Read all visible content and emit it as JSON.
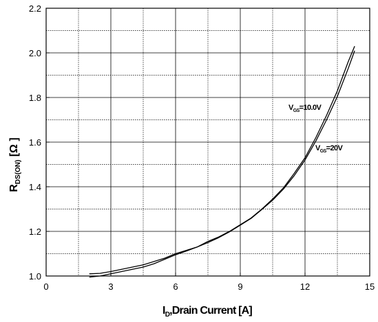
{
  "chart_data": {
    "type": "line",
    "xlim": [
      0,
      15
    ],
    "ylim": [
      1.0,
      2.2
    ],
    "x_ticks": [
      0,
      3,
      6,
      9,
      12,
      15
    ],
    "x_tick_labels": [
      "0",
      "3",
      "6",
      "9",
      "12",
      "15"
    ],
    "y_ticks": [
      1.0,
      1.2,
      1.4,
      1.6,
      1.8,
      2.0,
      2.2
    ],
    "y_tick_labels": [
      "1.0",
      "1.2",
      "1.4",
      "1.6",
      "1.8",
      "2.0",
      "2.2"
    ],
    "x_minor_grid_step": 1.5,
    "y_minor_grid_step": 0.1,
    "grid": true,
    "xlabel": {
      "main": "I",
      "sub": "D",
      "rest": ",Drain Current [A]"
    },
    "ylabel": {
      "main": "R",
      "sub": "DS(ON)",
      "rest": " [Ω ]"
    },
    "series": [
      {
        "label_main": "V",
        "label_sub": "GS",
        "label_rest": "=10.0V",
        "color": "#000000",
        "x": [
          2.0,
          2.5,
          3.0,
          3.5,
          4.0,
          4.5,
          5.0,
          5.5,
          6.0,
          6.5,
          7.0,
          7.5,
          8.0,
          8.5,
          9.0,
          9.5,
          10.0,
          10.5,
          11.0,
          11.5,
          12.0,
          12.5,
          13.0,
          13.5,
          14.0,
          14.3
        ],
        "y": [
          1.01,
          1.012,
          1.02,
          1.03,
          1.04,
          1.05,
          1.065,
          1.08,
          1.1,
          1.115,
          1.13,
          1.155,
          1.175,
          1.2,
          1.23,
          1.26,
          1.3,
          1.345,
          1.395,
          1.46,
          1.53,
          1.62,
          1.72,
          1.83,
          1.96,
          2.03
        ]
      },
      {
        "label_main": "V",
        "label_sub": "GS",
        "label_rest": "=20V",
        "color": "#000000",
        "x": [
          2.0,
          2.5,
          3.0,
          3.5,
          4.0,
          4.5,
          5.0,
          5.5,
          6.0,
          6.5,
          7.0,
          7.5,
          8.0,
          8.5,
          9.0,
          9.5,
          10.0,
          10.5,
          11.0,
          11.5,
          12.0,
          12.5,
          13.0,
          13.5,
          14.0,
          14.3
        ],
        "y": [
          0.995,
          1.0,
          1.01,
          1.02,
          1.03,
          1.04,
          1.055,
          1.075,
          1.095,
          1.112,
          1.13,
          1.15,
          1.172,
          1.198,
          1.228,
          1.258,
          1.298,
          1.34,
          1.39,
          1.45,
          1.52,
          1.605,
          1.7,
          1.805,
          1.93,
          2.01
        ]
      }
    ]
  }
}
